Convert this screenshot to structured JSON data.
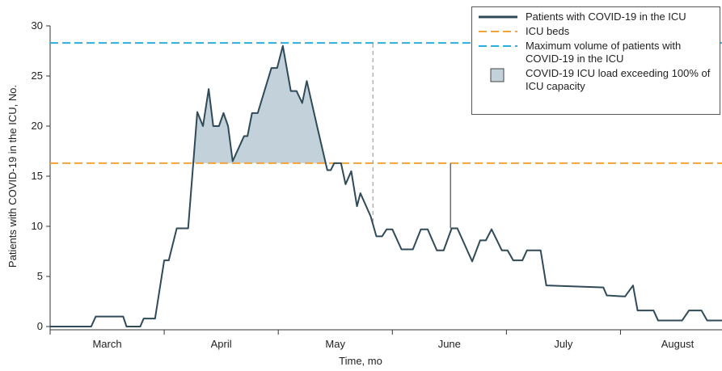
{
  "chart_data": {
    "type": "line",
    "x_label": "Time, mo",
    "y_label": "Patients with COVID-19 in the ICU, No.",
    "categories": [
      "March",
      "April",
      "May",
      "June",
      "July",
      "August"
    ],
    "xlim": [
      0,
      5.89
    ],
    "xticks": [
      0,
      1,
      2,
      3,
      4,
      5
    ],
    "ylim": [
      0,
      30
    ],
    "yticks": [
      0,
      5,
      10,
      15,
      20,
      25,
      30
    ],
    "x": [
      0,
      0.36,
      0.4,
      0.64,
      0.67,
      0.79,
      0.82,
      0.92,
      1.0,
      1.04,
      1.11,
      1.21,
      1.29,
      1.34,
      1.39,
      1.43,
      1.48,
      1.52,
      1.56,
      1.6,
      1.7,
      1.73,
      1.77,
      1.82,
      1.94,
      1.99,
      2.04,
      2.11,
      2.16,
      2.21,
      2.25,
      2.34,
      2.43,
      2.46,
      2.49,
      2.55,
      2.59,
      2.64,
      2.69,
      2.72,
      2.81,
      2.86,
      2.91,
      2.95,
      3.0,
      3.08,
      3.18,
      3.25,
      3.31,
      3.39,
      3.45,
      3.52,
      3.57,
      3.7,
      3.77,
      3.82,
      3.87,
      3.96,
      4.01,
      4.06,
      4.14,
      4.18,
      4.3,
      4.35,
      4.85,
      4.88,
      5.04,
      5.11,
      5.15,
      5.29,
      5.33,
      5.54,
      5.6,
      5.71,
      5.76,
      5.89
    ],
    "series": [
      {
        "name": "Patients with COVID-19 in the ICU",
        "color": "#2f4a59",
        "values": [
          0,
          0,
          1,
          1,
          0,
          0,
          0.8,
          0.8,
          6.6,
          6.6,
          9.8,
          9.8,
          21.4,
          20,
          23.7,
          20,
          20,
          21.3,
          20,
          16.5,
          19,
          19,
          21.3,
          21.3,
          25.8,
          25.8,
          28,
          23.5,
          23.5,
          22.3,
          24.5,
          20,
          15.6,
          15.6,
          16.3,
          16.3,
          14.2,
          15.5,
          12,
          13.3,
          11,
          9,
          9,
          9.7,
          9.7,
          7.7,
          7.7,
          9.7,
          9.7,
          7.6,
          7.6,
          9.8,
          9.8,
          6.5,
          8.6,
          8.6,
          9.7,
          7.6,
          7.6,
          6.6,
          6.6,
          7.6,
          7.6,
          4.1,
          3.9,
          3.1,
          3.0,
          4.1,
          1.6,
          1.6,
          0.6,
          0.6,
          1.6,
          1.6,
          0.6,
          0.6
        ]
      }
    ],
    "hlines": [
      {
        "name": "ICU beds",
        "color": "#f4a23a",
        "value": 16.3
      },
      {
        "name": "Maximum volume of patients with COVID-19 in the ICU",
        "color": "#2aaee0",
        "value": 28.3
      }
    ],
    "area": {
      "name": "COVID-19 ICU load exceeding 100% of ICU capacity",
      "color": "#c3d1da"
    },
    "vlines": [
      {
        "x": 2.83,
        "from": 10.4,
        "to": 28.3,
        "color": "#aaaaaa",
        "dashed": true
      },
      {
        "x": 3.51,
        "from": 9.8,
        "to": 16.3,
        "color": "#555555",
        "dashed": false
      }
    ]
  }
}
